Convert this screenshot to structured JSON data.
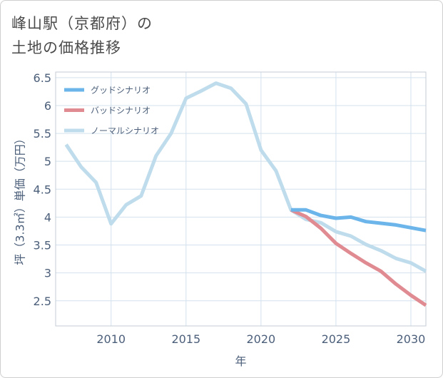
{
  "title": {
    "line1": "峰山駅（京都府）の",
    "line2": "土地の価格推移"
  },
  "chart_data": {
    "type": "line",
    "xlabel": "年",
    "ylabel": "坪（3.3㎡）単価（万円）",
    "xlim": [
      2006.3,
      2031.0
    ],
    "ylim": [
      2.05,
      6.6
    ],
    "x_ticks": [
      2010,
      2015,
      2020,
      2025,
      2030
    ],
    "y_ticks": [
      2.5,
      3,
      3.5,
      4,
      4.5,
      5,
      5.5,
      6,
      6.5
    ],
    "grid": true,
    "legend_position": "top-left",
    "series": [
      {
        "name": "グッドシナリオ",
        "color": "#6bb5ea",
        "x": [
          2022,
          2023,
          2024,
          2025,
          2026,
          2027,
          2028,
          2029,
          2030,
          2031
        ],
        "values": [
          4.13,
          4.13,
          4.03,
          3.98,
          4.0,
          3.92,
          3.89,
          3.86,
          3.81,
          3.76
        ]
      },
      {
        "name": "バッドシナリオ",
        "color": "#e08b91",
        "x": [
          2022,
          2023,
          2024,
          2025,
          2026,
          2027,
          2028,
          2029,
          2030,
          2031
        ],
        "values": [
          4.13,
          4.01,
          3.8,
          3.53,
          3.35,
          3.18,
          3.03,
          2.8,
          2.6,
          2.42
        ]
      },
      {
        "name": "ノーマルシナリオ",
        "color": "#bfdcec",
        "x": [
          2007,
          2008,
          2009,
          2010,
          2011,
          2012,
          2013,
          2014,
          2015,
          2016,
          2017,
          2018,
          2019,
          2020,
          2021,
          2022,
          2023,
          2024,
          2025,
          2026,
          2027,
          2028,
          2029,
          2030,
          2031
        ],
        "values": [
          5.3,
          4.9,
          4.62,
          3.88,
          4.22,
          4.38,
          5.1,
          5.5,
          6.13,
          6.26,
          6.4,
          6.31,
          6.03,
          5.2,
          4.83,
          4.13,
          3.96,
          3.9,
          3.74,
          3.66,
          3.51,
          3.4,
          3.26,
          3.18,
          3.03
        ]
      }
    ]
  }
}
